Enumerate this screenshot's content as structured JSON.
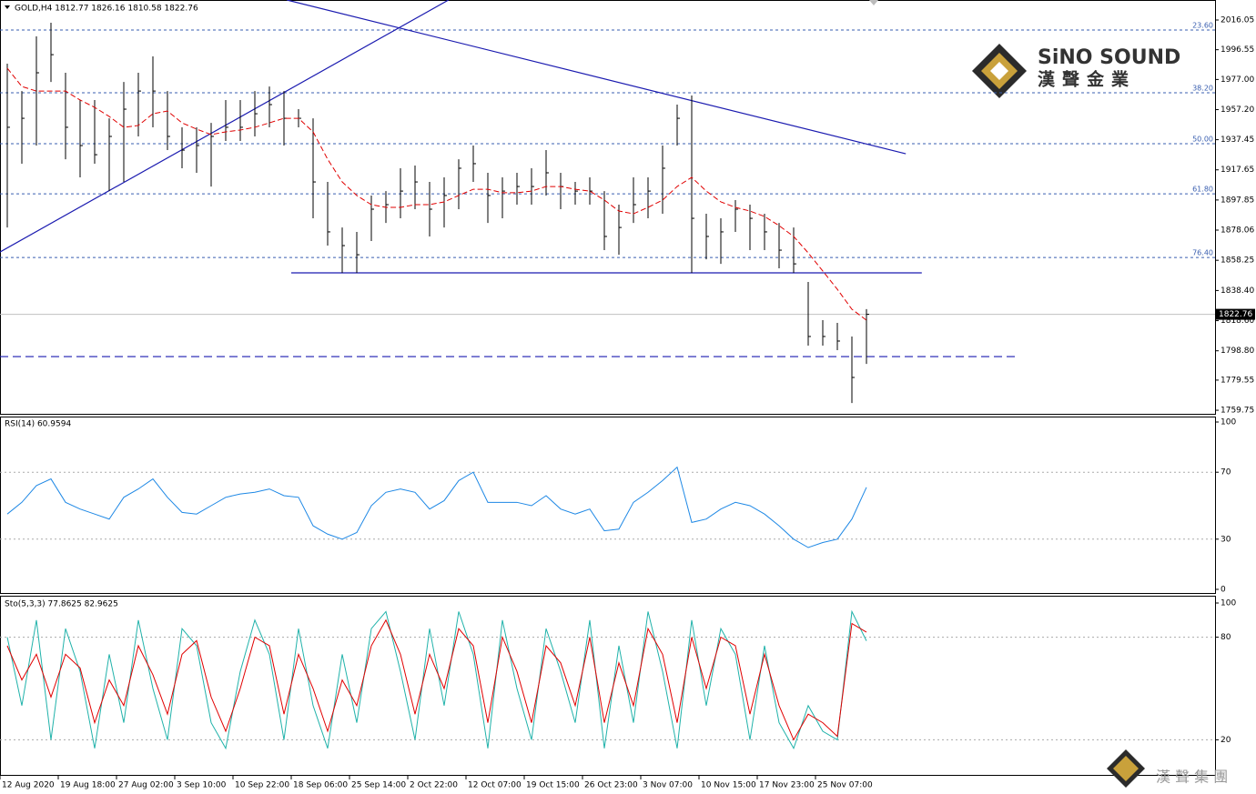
{
  "logo": {
    "name": "SiNO SOUND",
    "subtitle": "漢聲金業",
    "footer": "漢 聲 集 團"
  },
  "chart_data": [
    {
      "type": "ohlc",
      "title": "GOLD,H4 1812.77 1826.16 1810.58 1822.76",
      "color": "#000000",
      "categories": [
        "12 Aug 2020",
        null,
        null,
        null,
        "19 Aug 18:00",
        null,
        null,
        null,
        "27 Aug 02:00",
        null,
        null,
        null,
        "3 Sep 10:00",
        null,
        null,
        null,
        "10 Sep 22:00",
        null,
        null,
        null,
        "18 Sep 06:00",
        null,
        null,
        null,
        "25 Sep 14:00",
        null,
        null,
        null,
        "2 Oct 22:00",
        null,
        null,
        null,
        "12 Oct 07:00",
        null,
        null,
        null,
        "19 Oct 15:00",
        null,
        null,
        null,
        "26 Oct 23:00",
        null,
        null,
        null,
        "3 Nov 07:00",
        null,
        null,
        null,
        "10 Nov 15:00",
        null,
        null,
        null,
        "17 Nov 23:00",
        null,
        null,
        null,
        "25 Nov 07:00",
        null,
        null,
        null
      ],
      "high": [
        1987.4,
        1969.4,
        2005.3,
        2014.3,
        1981.4,
        1963.5,
        1963.5,
        1951.5,
        1975.4,
        1981.4,
        1992.2,
        1969.4,
        1945.6,
        1945.6,
        1948.5,
        1963.5,
        1963.5,
        1969.4,
        1972.4,
        1969.4,
        1957.5,
        1951.5,
        1909.7,
        1879.8,
        1876.9,
        1900.8,
        1903.7,
        1918.7,
        1920.5,
        1909.7,
        1912.7,
        1924.6,
        1933.6,
        1915.7,
        1912.7,
        1915.7,
        1918.7,
        1930.6,
        1915.7,
        1909.7,
        1912.7,
        1903.7,
        1894.8,
        1912.7,
        1912.7,
        1933.6,
        1960.5,
        1966.5,
        1888.8,
        1885.8,
        1897.8,
        1894.8,
        1888.8,
        1882.8,
        1879.8,
        1844.0,
        1818.9,
        1817.1,
        1808.2,
        1826.16
      ],
      "low": [
        1879.8,
        1921.7,
        1933.6,
        1975.4,
        1924.6,
        1912.7,
        1921.7,
        1903.7,
        1909.7,
        1939.6,
        1945.6,
        1930.6,
        1918.7,
        1915.7,
        1906.7,
        1936.6,
        1936.6,
        1939.6,
        1945.6,
        1933.6,
        1945.6,
        1885.8,
        1867.9,
        1850.0,
        1850.0,
        1870.9,
        1882.8,
        1885.8,
        1891.8,
        1873.9,
        1879.8,
        1891.8,
        1909.7,
        1882.8,
        1885.8,
        1894.8,
        1894.8,
        1900.8,
        1891.8,
        1894.8,
        1894.8,
        1864.9,
        1861.9,
        1882.8,
        1885.8,
        1888.8,
        1933.6,
        1850.0,
        1858.9,
        1855.9,
        1876.9,
        1864.9,
        1864.9,
        1853.0,
        1850.0,
        1802.2,
        1802.2,
        1799.2,
        1764.5,
        1790.2
      ],
      "close": [
        1945.6,
        1951.5,
        1981.4,
        1993.3,
        1945.6,
        1933.6,
        1927.6,
        1939.6,
        1957.5,
        1969.4,
        1969.4,
        1939.6,
        1930.6,
        1933.6,
        1939.6,
        1945.6,
        1945.6,
        1954.5,
        1960.5,
        1951.5,
        1951.5,
        1909.7,
        1876.9,
        1867.9,
        1861.9,
        1891.8,
        1894.8,
        1903.7,
        1909.7,
        1891.8,
        1900.8,
        1918.7,
        1921.7,
        1900.8,
        1903.7,
        1906.7,
        1906.7,
        1915.7,
        1906.7,
        1903.7,
        1903.7,
        1873.9,
        1879.8,
        1894.8,
        1903.7,
        1918.7,
        1951.5,
        1885.8,
        1873.9,
        1876.9,
        1891.8,
        1885.8,
        1876.9,
        1864.9,
        1855.9,
        1808.2,
        1808.2,
        1805.2,
        1781.3,
        1822.76
      ],
      "ma": {
        "color": "#e00000",
        "values": [
          1984.4,
          1972.4,
          1969.4,
          1969.4,
          1969.4,
          1963.5,
          1958.7,
          1952.7,
          1945.6,
          1946.8,
          1954.5,
          1956.3,
          1948.5,
          1944.4,
          1940.8,
          1942.6,
          1943.8,
          1945.6,
          1948.5,
          1951.5,
          1951.5,
          1942.6,
          1924.6,
          1909.7,
          1900.8,
          1894.8,
          1893.0,
          1893.0,
          1894.8,
          1894.8,
          1896.6,
          1900.8,
          1904.9,
          1904.9,
          1902.6,
          1902.6,
          1903.7,
          1906.7,
          1906.7,
          1904.9,
          1903.7,
          1897.8,
          1890.6,
          1888.8,
          1893.0,
          1897.8,
          1906.7,
          1912.7,
          1903.7,
          1896.6,
          1893.0,
          1890.6,
          1887.0,
          1881.0,
          1873.9,
          1863.1,
          1851.2,
          1839.2,
          1826.1,
          1818.9
        ]
      },
      "ylim": [
        1757.4,
        2029.2
      ],
      "yticks": [
        2016.05,
        1996.55,
        {
          "value": 1977,
          "label": "1977.00"
        },
        {
          "value": 1957.2,
          "label": "1957.20"
        },
        1937.45,
        1917.65,
        1897.85,
        1878.06,
        1858.25,
        {
          "value": 1838.4,
          "label": "1838.40"
        },
        {
          "value": 1818.6,
          "label": "1818.60"
        },
        {
          "value": 1798.8,
          "label": "1798.80"
        },
        1779.55,
        1759.75
      ],
      "grid": false,
      "levels": [
        {
          "label": "23.60",
          "value": 2009.5
        },
        {
          "label": "38.20",
          "value": 1968.3
        },
        {
          "label": "50.00",
          "value": 1934.8
        },
        {
          "label": "61.80",
          "value": 1901.9
        },
        {
          "label": "76.40",
          "value": 1860.1
        }
      ],
      "trendlines": [
        {
          "x": [
            -0.5,
            30.3
          ],
          "y": [
            1863.7,
            2029.2
          ],
          "color": "#1b1bb0",
          "dashed": false
        },
        {
          "x": [
            19.2,
            61.7
          ],
          "y": [
            2029.2,
            1928.2
          ],
          "color": "#1b1bb0",
          "dashed": false
        },
        {
          "x": [
            19.5,
            62.8
          ],
          "y": [
            1850.0,
            1850.0
          ],
          "color": "#1b1bb0",
          "dashed": false
        },
        {
          "x": [
            -0.5,
            69.3
          ],
          "y": [
            1795.0,
            1795.0
          ],
          "color": "#1b1bb0",
          "dashed": true
        }
      ],
      "last_price": {
        "value": 1822.76,
        "label": "1822.76"
      }
    },
    {
      "type": "line",
      "title": "RSI(14) 60.9594",
      "color": "#1e88e5",
      "ylim": [
        0,
        100
      ],
      "yticks": [
        0,
        30,
        70,
        100
      ],
      "grid": true,
      "values": [
        45,
        52,
        62,
        66,
        52,
        48,
        45,
        42,
        55,
        60,
        66,
        55,
        46,
        45,
        50,
        55,
        57,
        58,
        60,
        56,
        55,
        38,
        33,
        30,
        34,
        50,
        58,
        60,
        58,
        48,
        53,
        65,
        70,
        52,
        52,
        52,
        50,
        56,
        48,
        45,
        48,
        35,
        36,
        52,
        58,
        65,
        73,
        40,
        42,
        48,
        52,
        50,
        45,
        38,
        30,
        25,
        28,
        30,
        42,
        60.9594
      ]
    },
    {
      "type": "stochastic",
      "title": "Sto(5,3,3) 77.8625 82.9625",
      "ylim": [
        0,
        100
      ],
      "yticks": [
        20,
        80,
        100
      ],
      "grid": true,
      "main": {
        "color": "#20b2aa",
        "values": [
          80,
          40,
          90,
          20,
          85,
          60,
          15,
          70,
          30,
          90,
          50,
          20,
          85,
          75,
          30,
          15,
          60,
          90,
          70,
          20,
          85,
          40,
          15,
          70,
          30,
          85,
          95,
          60,
          20,
          85,
          40,
          95,
          70,
          15,
          90,
          50,
          20,
          85,
          60,
          30,
          90,
          15,
          75,
          30,
          95,
          60,
          15,
          90,
          40,
          85,
          70,
          20,
          75,
          30,
          15,
          40,
          25,
          20,
          95,
          77.8625
        ]
      },
      "signal": {
        "color": "#e00000",
        "values": [
          75,
          55,
          70,
          45,
          70,
          62,
          30,
          55,
          40,
          75,
          58,
          35,
          70,
          78,
          45,
          25,
          50,
          80,
          75,
          35,
          70,
          50,
          25,
          55,
          40,
          75,
          90,
          70,
          35,
          70,
          50,
          85,
          75,
          30,
          80,
          60,
          30,
          75,
          65,
          40,
          80,
          30,
          65,
          40,
          85,
          70,
          30,
          80,
          50,
          80,
          75,
          35,
          70,
          40,
          20,
          35,
          30,
          22,
          88,
          82.9625
        ]
      }
    }
  ]
}
